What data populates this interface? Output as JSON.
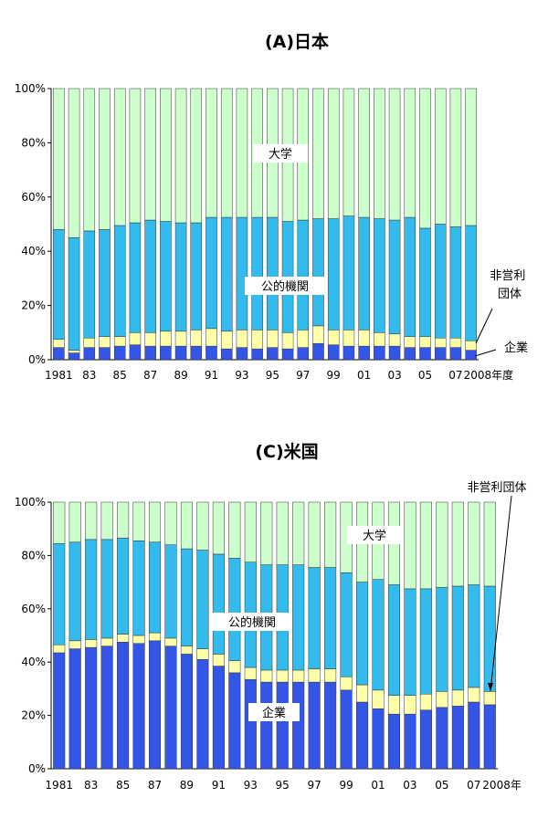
{
  "colors": {
    "company": "#3355e8",
    "nonprofit": "#ffffaa",
    "public": "#33bbee",
    "university": "#ccffcc",
    "edge": "#333333"
  },
  "chart_data": [
    {
      "type": "bar",
      "stacked": true,
      "title": "(A)日本",
      "x": [
        1981,
        1982,
        1983,
        1984,
        1985,
        1986,
        1987,
        1988,
        1989,
        1990,
        1991,
        1992,
        1993,
        1994,
        1995,
        1996,
        1997,
        1998,
        1999,
        2000,
        2001,
        2002,
        2003,
        2004,
        2005,
        2006,
        2007,
        2008
      ],
      "x_tick_labels": [
        "1981",
        "83",
        "85",
        "87",
        "89",
        "91",
        "93",
        "95",
        "97",
        "99",
        "01",
        "03",
        "05",
        "07"
      ],
      "x_end_label": "2008年度",
      "y_tick_labels": [
        "0%",
        "20%",
        "40%",
        "60%",
        "80%",
        "100%"
      ],
      "ylim": [
        0,
        100
      ],
      "series": [
        {
          "name": "企業",
          "key": "company",
          "values": [
            4.5,
            2.5,
            4.5,
            4.5,
            5,
            5.5,
            5,
            5,
            5,
            5,
            5,
            4,
            4.5,
            4,
            4.5,
            4,
            4.5,
            6,
            5.5,
            5,
            5,
            5,
            5,
            4.5,
            4.5,
            4.5,
            4.5,
            3.5
          ]
        },
        {
          "name": "非営利団体",
          "key": "nonprofit",
          "values": [
            3,
            1,
            3.5,
            4,
            3.5,
            4.5,
            5,
            5.5,
            5.5,
            6,
            6.5,
            6.5,
            6.5,
            7,
            6.5,
            6,
            6.5,
            6.5,
            5.5,
            6,
            6,
            5,
            4.5,
            4,
            4,
            3.5,
            3.5,
            3.5
          ]
        },
        {
          "name": "公的機関",
          "key": "public",
          "values": [
            40.5,
            41.5,
            39.5,
            39.5,
            41,
            40.5,
            41.5,
            40.5,
            40,
            39.5,
            41,
            42,
            41.5,
            41.5,
            41.5,
            41,
            40.5,
            39.5,
            41,
            42,
            41.5,
            42,
            42,
            44,
            40,
            42,
            41,
            42.5
          ]
        },
        {
          "name": "大学",
          "key": "university",
          "values": [
            52,
            55,
            52.5,
            52,
            50.5,
            49.5,
            48.5,
            49,
            49.5,
            49.5,
            47.5,
            47.5,
            47.5,
            47.5,
            47.5,
            49,
            48.5,
            48,
            48,
            47,
            47.5,
            48,
            48.5,
            47.5,
            51.5,
            50,
            51,
            50.5
          ]
        }
      ],
      "annotations": [
        "大学",
        "公的機関",
        "非営利\n団体",
        "企業"
      ]
    },
    {
      "type": "bar",
      "stacked": true,
      "title": "(C)米国",
      "x": [
        1981,
        1982,
        1983,
        1984,
        1985,
        1986,
        1987,
        1988,
        1989,
        1990,
        1991,
        1992,
        1993,
        1994,
        1995,
        1996,
        1997,
        1998,
        1999,
        2000,
        2001,
        2002,
        2003,
        2004,
        2005,
        2006,
        2007,
        2008
      ],
      "x_tick_labels": [
        "1981",
        "83",
        "85",
        "87",
        "89",
        "91",
        "93",
        "95",
        "97",
        "99",
        "01",
        "03",
        "05",
        "07"
      ],
      "x_end_label": "2008年",
      "y_tick_labels": [
        "0%",
        "20%",
        "40%",
        "60%",
        "80%",
        "100%"
      ],
      "ylim": [
        0,
        100
      ],
      "series": [
        {
          "name": "企業",
          "key": "company",
          "values": [
            43.5,
            45,
            45.5,
            46,
            47.5,
            47,
            48,
            46,
            43,
            41,
            38.5,
            36,
            33.5,
            32.5,
            32.5,
            32.5,
            32.5,
            32.5,
            29.5,
            25,
            22.5,
            20.5,
            20.5,
            22,
            23,
            23.5,
            25,
            24
          ]
        },
        {
          "name": "非営利団体",
          "key": "nonprofit",
          "values": [
            3,
            3,
            3,
            3,
            3,
            3,
            3,
            3,
            3,
            4,
            4.5,
            4.5,
            4.5,
            4.5,
            4.5,
            4.5,
            5,
            5,
            5,
            6.5,
            7,
            7,
            7,
            6,
            6,
            6,
            5.5,
            5
          ]
        },
        {
          "name": "公的機関",
          "key": "public",
          "values": [
            38,
            37,
            37.5,
            37,
            36,
            35.5,
            34,
            35,
            36.5,
            37,
            37.5,
            38.5,
            39.5,
            39.5,
            39.5,
            39.5,
            38,
            38,
            39,
            38.5,
            41.5,
            41.5,
            40,
            39.5,
            39,
            39,
            38.5,
            39.5
          ]
        },
        {
          "name": "大学",
          "key": "university",
          "values": [
            15.5,
            15,
            14,
            14,
            13.5,
            14.5,
            15,
            16,
            17.5,
            18,
            19.5,
            21,
            22.5,
            23.5,
            23.5,
            23.5,
            24.5,
            24.5,
            26.5,
            30,
            29,
            31,
            32.5,
            32.5,
            32,
            31.5,
            31,
            31.5
          ]
        }
      ],
      "annotations": [
        "非営利団体",
        "大学",
        "公的機関",
        "企業"
      ]
    }
  ]
}
